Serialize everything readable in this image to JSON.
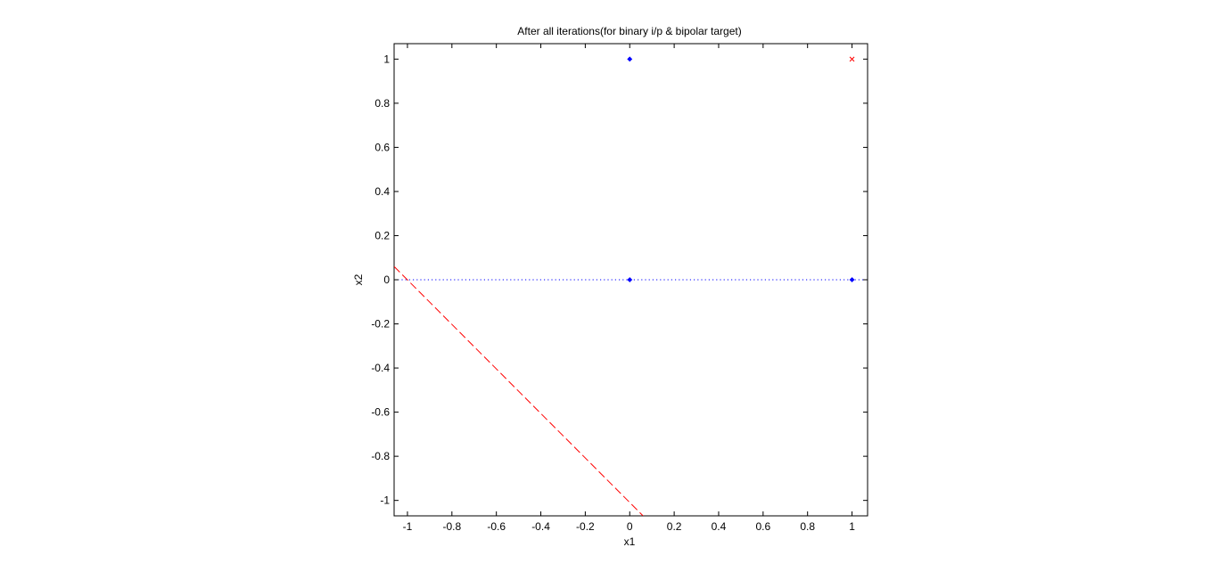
{
  "chart_data": {
    "type": "scatter",
    "title": "After all iterations(for binary i/p & bipolar target)",
    "xlabel": "x1",
    "ylabel": "x2",
    "xlim": [
      -1.06,
      1.07
    ],
    "ylim": [
      -1.07,
      1.07
    ],
    "xticks": [
      -1,
      -0.8,
      -0.6,
      -0.4,
      -0.2,
      0,
      0.2,
      0.4,
      0.6,
      0.8,
      1
    ],
    "yticks": [
      -1,
      -0.8,
      -0.6,
      -0.4,
      -0.2,
      0,
      0.2,
      0.4,
      0.6,
      0.8,
      1
    ],
    "xtick_labels": [
      "-1",
      "-0.8",
      "-0.6",
      "-0.4",
      "-0.2",
      "0",
      "0.2",
      "0.4",
      "0.6",
      "0.8",
      "1"
    ],
    "ytick_labels": [
      "-1",
      "-0.8",
      "-0.6",
      "-0.4",
      "-0.2",
      "0",
      "0.2",
      "0.4",
      "0.6",
      "0.8",
      "1"
    ],
    "grid": false,
    "series": [
      {
        "marker": "diamond",
        "color": "#0000ff",
        "points": [
          [
            0,
            0
          ],
          [
            0,
            1
          ],
          [
            1,
            0
          ]
        ]
      },
      {
        "marker": "x",
        "color": "#ff0000",
        "points": [
          [
            1,
            1
          ]
        ]
      }
    ],
    "lines": [
      {
        "style": "dotted",
        "color": "#0000ff",
        "points": [
          [
            -1.06,
            0
          ],
          [
            1.07,
            0
          ]
        ]
      },
      {
        "style": "dashed",
        "color": "#ff0000",
        "points": [
          [
            -1.06,
            0.06
          ],
          [
            0.06,
            -1.07
          ]
        ]
      }
    ]
  }
}
